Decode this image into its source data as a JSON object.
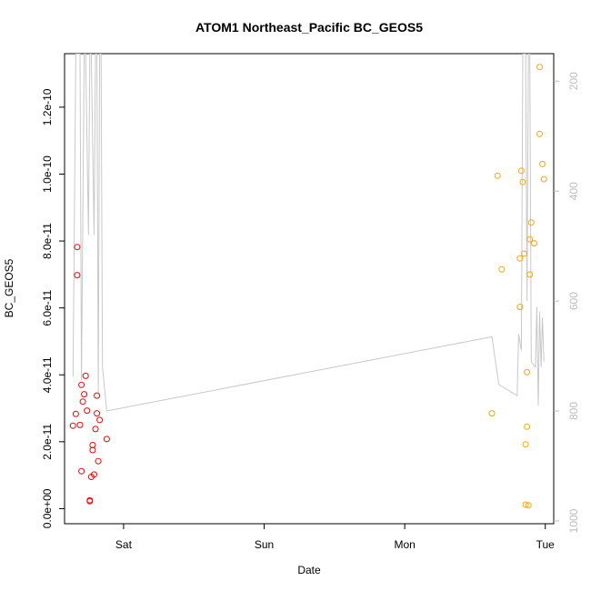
{
  "chart_data": {
    "type": "scatter",
    "title": "ATOM1 Northeast_Pacific BC_GEOS5",
    "xlabel": "Date",
    "ylabel": "BC_GEOS5",
    "x_ticks": [
      "Sat",
      "Sun",
      "Mon",
      "Tue"
    ],
    "y_ticks": [
      "0.0e+00",
      "2.0e-11",
      "4.0e-11",
      "6.0e-11",
      "8.0e-11",
      "1.0e-10",
      "1.2e-10"
    ],
    "y_tick_values": [
      0,
      2e-11,
      4e-11,
      6e-11,
      8e-11,
      1e-10,
      1.2e-10
    ],
    "ylim": [
      -4.5e-12,
      1.36e-10
    ],
    "xlim": [
      -0.42,
      3.06
    ],
    "y2_ticks": [
      "200",
      "400",
      "600",
      "800",
      "1000"
    ],
    "y2_tick_values": [
      200,
      400,
      600,
      800,
      1000
    ],
    "y2lim": [
      1005,
      150
    ],
    "grid": false,
    "colors": {
      "series1": "#ff0000",
      "series2": "#ffa500",
      "pressure": "#c8c8c8"
    },
    "series": [
      {
        "color": "#ff0000",
        "points": [
          [
            -0.36,
            2.48e-11
          ],
          [
            -0.34,
            2.83e-11
          ],
          [
            -0.33,
            7.82e-11
          ],
          [
            -0.33,
            6.98e-11
          ],
          [
            -0.31,
            2.5e-11
          ],
          [
            -0.3,
            3.7e-11
          ],
          [
            -0.29,
            3.2e-11
          ],
          [
            -0.3,
            1.12e-11
          ],
          [
            -0.28,
            3.42e-11
          ],
          [
            -0.27,
            3.97e-11
          ],
          [
            -0.26,
            2.93e-11
          ],
          [
            -0.24,
            2.2e-12
          ],
          [
            -0.24,
            2.5e-12
          ],
          [
            -0.23,
            9.5e-12
          ],
          [
            -0.22,
            1.75e-11
          ],
          [
            -0.22,
            1.9e-11
          ],
          [
            -0.21,
            1.02e-11
          ],
          [
            -0.2,
            2.38e-11
          ],
          [
            -0.19,
            3.38e-11
          ],
          [
            -0.19,
            2.85e-11
          ],
          [
            -0.18,
            1.42e-11
          ],
          [
            -0.17,
            2.65e-11
          ],
          [
            -0.12,
            2.08e-11
          ]
        ]
      },
      {
        "color": "#ffa500",
        "points": [
          [
            2.62,
            2.85e-11
          ],
          [
            2.66,
            9.95e-11
          ],
          [
            2.69,
            7.15e-11
          ],
          [
            2.82,
            7.48e-11
          ],
          [
            2.82,
            6.03e-11
          ],
          [
            2.83,
            1.01e-10
          ],
          [
            2.84,
            9.76e-11
          ],
          [
            2.85,
            7.62e-11
          ],
          [
            2.86,
            1.92e-11
          ],
          [
            2.86,
            1.2e-12
          ],
          [
            2.87,
            2.45e-11
          ],
          [
            2.87,
            4.08e-11
          ],
          [
            2.88,
            1e-12
          ],
          [
            2.89,
            7e-11
          ],
          [
            2.89,
            8.05e-11
          ],
          [
            2.9,
            8.55e-11
          ],
          [
            2.92,
            7.93e-11
          ],
          [
            2.96,
            1.32e-10
          ],
          [
            2.96,
            1.12e-10
          ],
          [
            2.98,
            1.03e-10
          ],
          [
            2.99,
            9.85e-11
          ]
        ]
      }
    ],
    "pressure_line": [
      [
        -0.36,
        738
      ],
      [
        -0.34,
        150
      ],
      [
        -0.31,
        150
      ],
      [
        -0.3,
        745
      ],
      [
        -0.28,
        150
      ],
      [
        -0.27,
        150
      ],
      [
        -0.25,
        480
      ],
      [
        -0.24,
        150
      ],
      [
        -0.23,
        150
      ],
      [
        -0.21,
        480
      ],
      [
        -0.2,
        150
      ],
      [
        -0.19,
        150
      ],
      [
        -0.18,
        768
      ],
      [
        -0.17,
        150
      ],
      [
        -0.16,
        150
      ],
      [
        -0.15,
        720
      ],
      [
        -0.12,
        800
      ],
      [
        2.62,
        665
      ],
      [
        2.67,
        752
      ],
      [
        2.8,
        772
      ],
      [
        2.81,
        660
      ],
      [
        2.83,
        690
      ],
      [
        2.84,
        150
      ],
      [
        2.86,
        150
      ],
      [
        2.87,
        600
      ],
      [
        2.88,
        150
      ],
      [
        2.89,
        150
      ],
      [
        2.9,
        710
      ],
      [
        2.92,
        718
      ],
      [
        2.93,
        720
      ],
      [
        2.94,
        610
      ],
      [
        2.95,
        790
      ],
      [
        2.96,
        620
      ],
      [
        2.97,
        720
      ],
      [
        2.98,
        630
      ],
      [
        2.99,
        710
      ]
    ]
  }
}
